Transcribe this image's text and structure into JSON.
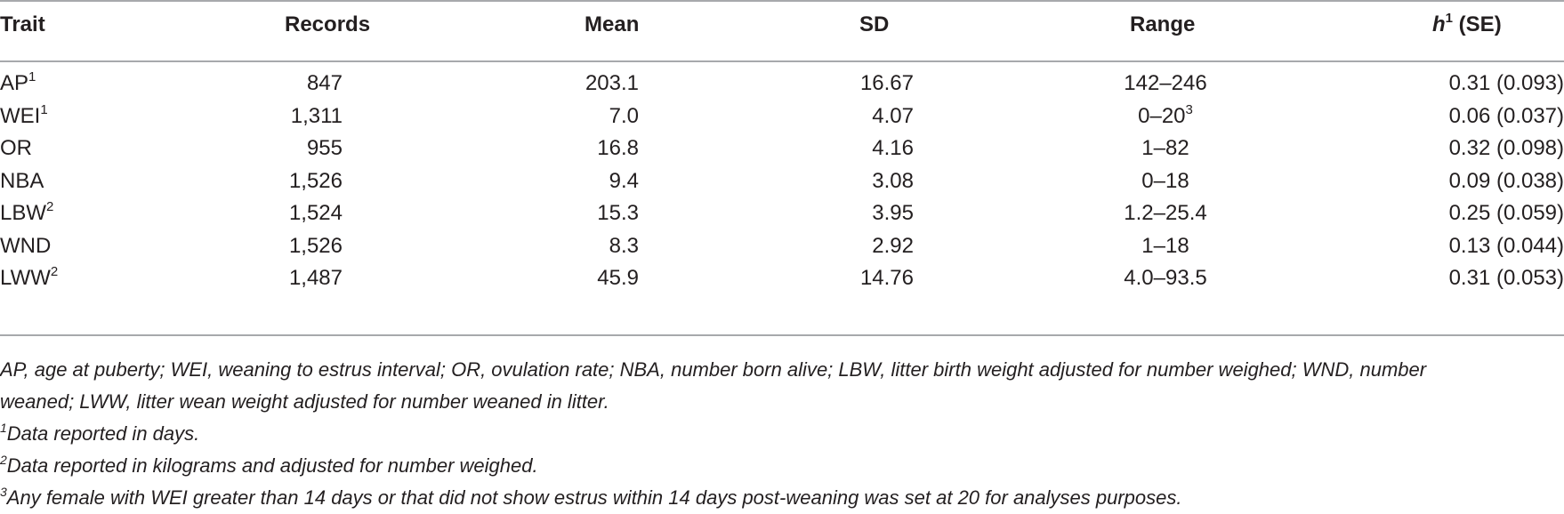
{
  "table": {
    "headers": {
      "trait": "Trait",
      "records": "Records",
      "mean": "Mean",
      "sd": "SD",
      "range": "Range",
      "h_symbol": "h",
      "h_sup": "1",
      "h_rest": " (SE)"
    },
    "rows": [
      {
        "trait": "AP",
        "trait_sup": "1",
        "records": "847",
        "mean": "203.1",
        "sd": "16.67",
        "range": "142–246",
        "range_sup": "",
        "h": "0.31 (0.093)"
      },
      {
        "trait": "WEI",
        "trait_sup": "1",
        "records": "1,311",
        "mean": "7.0",
        "sd": "4.07",
        "range": "0–20",
        "range_sup": "3",
        "h": "0.06 (0.037)"
      },
      {
        "trait": "OR",
        "trait_sup": "",
        "records": "955",
        "mean": "16.8",
        "sd": "4.16",
        "range": "1–82",
        "range_sup": "",
        "h": "0.32 (0.098)"
      },
      {
        "trait": "NBA",
        "trait_sup": "",
        "records": "1,526",
        "mean": "9.4",
        "sd": "3.08",
        "range": "0–18",
        "range_sup": "",
        "h": "0.09 (0.038)"
      },
      {
        "trait": "LBW",
        "trait_sup": "2",
        "records": "1,524",
        "mean": "15.3",
        "sd": "3.95",
        "range": "1.2–25.4",
        "range_sup": "",
        "h": "0.25 (0.059)"
      },
      {
        "trait": "WND",
        "trait_sup": "",
        "records": "1,526",
        "mean": "8.3",
        "sd": "2.92",
        "range": "1–18",
        "range_sup": "",
        "h": "0.13 (0.044)"
      },
      {
        "trait": "LWW",
        "trait_sup": "2",
        "records": "1,487",
        "mean": "45.9",
        "sd": "14.76",
        "range": "4.0–93.5",
        "range_sup": "",
        "h": "0.31 (0.053)"
      }
    ]
  },
  "footnotes": {
    "abbrev_line1": "AP, age at puberty; WEI, weaning to estrus interval; OR, ovulation rate; NBA, number born alive; LBW, litter birth weight adjusted for number weighed; WND, number",
    "abbrev_line2": "weaned; LWW, litter wean weight adjusted for number weaned in litter.",
    "note1_mark": "1",
    "note1_text": "Data reported in days.",
    "note2_mark": "2",
    "note2_text": "Data reported in kilograms and adjusted for number weighed.",
    "note3_mark": "3",
    "note3_text": "Any female with WEI greater than 14 days or that did not show estrus within 14 days post-weaning was set at 20 for analyses purposes."
  }
}
